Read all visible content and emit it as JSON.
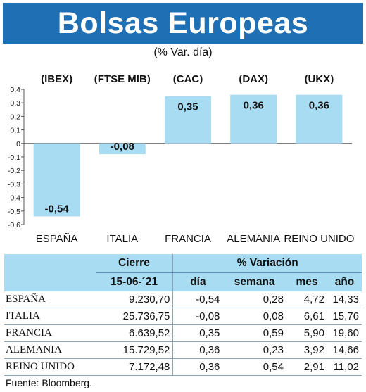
{
  "title": "Bolsas Europeas",
  "subtitle": "(% Var. día)",
  "source": "Fuente: Bloomberg.",
  "colors": {
    "title_bg": "#1f6fb5",
    "bar": "#a8dcf2",
    "table_header": "#a8dcf2"
  },
  "chart_data": {
    "type": "bar",
    "title": "Bolsas Europeas",
    "subtitle": "(% Var. día)",
    "index_labels": [
      "(IBEX)",
      "(FTSE MIB)",
      "(CAC)",
      "(DAX)",
      "(UKX)"
    ],
    "categories": [
      "ESPAÑA",
      "ITALIA",
      "FRANCIA",
      "ALEMANIA",
      "REINO UNIDO"
    ],
    "values": [
      -0.54,
      -0.08,
      0.35,
      0.36,
      0.36
    ],
    "value_labels": [
      "-0,54",
      "-0,08",
      "0,35",
      "0,36",
      "0,36"
    ],
    "ylim": [
      -0.6,
      0.4
    ],
    "yticks": [
      0.4,
      0.3,
      0.2,
      0.1,
      0,
      -0.1,
      -0.2,
      -0.3,
      -0.4,
      -0.5,
      -0.6
    ],
    "ytick_labels": [
      "0,4",
      "0,3",
      "0,2",
      "0,1",
      "0",
      "-0,1",
      "-0,2",
      "-0,3",
      "-0,4",
      "-0,5",
      "-0,6"
    ],
    "grid": false,
    "legend": "none"
  },
  "table": {
    "header_cierre": "Cierre",
    "header_variacion": "% Variación",
    "date": "15-06-´21",
    "columns": [
      "día",
      "semana",
      "mes",
      "año"
    ],
    "rows": [
      {
        "name": "ESPAÑA",
        "cierre": "9.230,70",
        "dia": "-0,54",
        "semana": "0,28",
        "mes": "4,72",
        "ano": "14,33"
      },
      {
        "name": "ITALIA",
        "cierre": "25.736,75",
        "dia": "-0,08",
        "semana": "0,08",
        "mes": "6,61",
        "ano": "15,76"
      },
      {
        "name": "FRANCIA",
        "cierre": "6.639,52",
        "dia": "0,35",
        "semana": "0,59",
        "mes": "5,90",
        "ano": "19,60"
      },
      {
        "name": "ALEMANIA",
        "cierre": "15.729,52",
        "dia": "0,36",
        "semana": "0,23",
        "mes": "3,92",
        "ano": "14,66"
      },
      {
        "name": "REINO UNIDO",
        "cierre": "7.172,48",
        "dia": "0,36",
        "semana": "0,54",
        "mes": "2,91",
        "ano": "11,02"
      }
    ]
  }
}
